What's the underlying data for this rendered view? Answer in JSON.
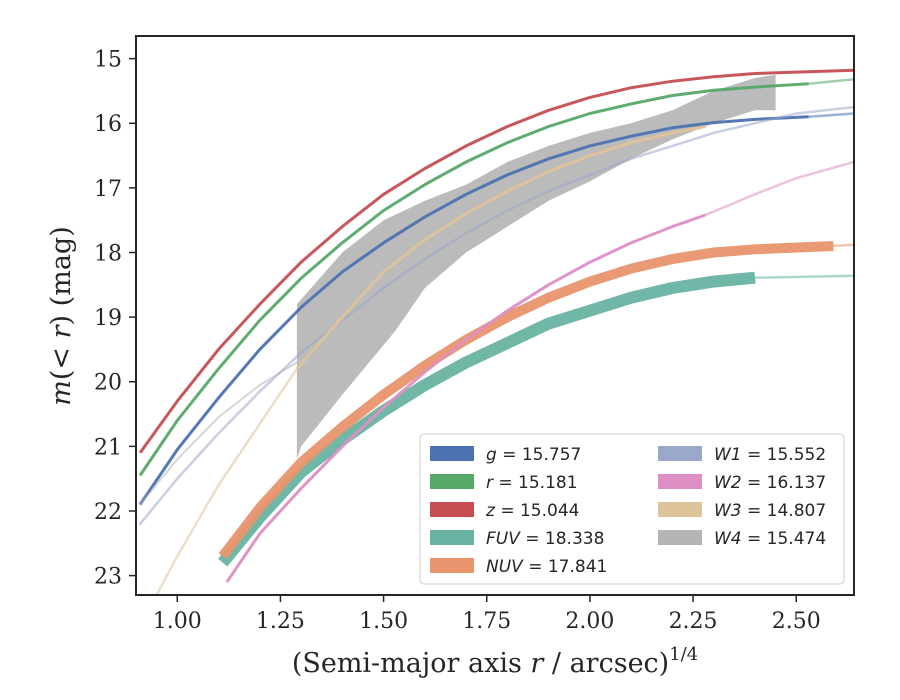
{
  "chart_data": {
    "type": "line",
    "xlabel_prefix": "(Semi-major axis ",
    "xlabel_var": "r",
    "xlabel_suffix": " / arcsec)",
    "xlabel_exp": "1/4",
    "ylabel_prefix": "m(< ",
    "ylabel_var": "r",
    "ylabel_suffix": ") (mag)",
    "xlim": [
      0.9,
      2.64
    ],
    "ylim": [
      23.3,
      14.65
    ],
    "y_inverted": true,
    "xticks": [
      "1.00",
      "1.25",
      "1.50",
      "1.75",
      "2.00",
      "2.25",
      "2.50"
    ],
    "yticks": [
      "15",
      "16",
      "17",
      "18",
      "19",
      "20",
      "21",
      "22",
      "23"
    ],
    "legend_position": "lower-right",
    "series": [
      {
        "name": "g",
        "label": "= 15.757",
        "color": "#4c72b0",
        "points": [
          [
            0.91,
            21.9
          ],
          [
            1.0,
            21.05
          ],
          [
            1.1,
            20.25
          ],
          [
            1.2,
            19.5
          ],
          [
            1.3,
            18.85
          ],
          [
            1.4,
            18.3
          ],
          [
            1.5,
            17.85
          ],
          [
            1.6,
            17.45
          ],
          [
            1.7,
            17.1
          ],
          [
            1.8,
            16.8
          ],
          [
            1.9,
            16.55
          ],
          [
            2.0,
            16.35
          ],
          [
            2.1,
            16.2
          ],
          [
            2.2,
            16.07
          ],
          [
            2.3,
            15.99
          ],
          [
            2.4,
            15.94
          ],
          [
            2.53,
            15.9
          ]
        ],
        "extrap": [
          [
            2.53,
            15.9
          ],
          [
            2.64,
            15.85
          ]
        ]
      },
      {
        "name": "r",
        "label": "= 15.181",
        "color": "#55a868",
        "points": [
          [
            0.91,
            21.45
          ],
          [
            1.0,
            20.6
          ],
          [
            1.1,
            19.8
          ],
          [
            1.2,
            19.05
          ],
          [
            1.3,
            18.4
          ],
          [
            1.4,
            17.85
          ],
          [
            1.5,
            17.35
          ],
          [
            1.6,
            16.95
          ],
          [
            1.7,
            16.6
          ],
          [
            1.8,
            16.3
          ],
          [
            1.9,
            16.05
          ],
          [
            2.0,
            15.85
          ],
          [
            2.1,
            15.7
          ],
          [
            2.2,
            15.57
          ],
          [
            2.3,
            15.49
          ],
          [
            2.4,
            15.44
          ],
          [
            2.53,
            15.39
          ]
        ],
        "extrap": [
          [
            2.53,
            15.39
          ],
          [
            2.64,
            15.32
          ]
        ]
      },
      {
        "name": "z",
        "label": "= 15.044",
        "color": "#c44e52",
        "points": [
          [
            0.91,
            21.1
          ],
          [
            1.0,
            20.3
          ],
          [
            1.1,
            19.5
          ],
          [
            1.2,
            18.8
          ],
          [
            1.3,
            18.15
          ],
          [
            1.4,
            17.6
          ],
          [
            1.5,
            17.1
          ],
          [
            1.6,
            16.7
          ],
          [
            1.7,
            16.35
          ],
          [
            1.8,
            16.05
          ],
          [
            1.9,
            15.8
          ],
          [
            2.0,
            15.6
          ],
          [
            2.1,
            15.45
          ],
          [
            2.2,
            15.35
          ],
          [
            2.3,
            15.28
          ],
          [
            2.4,
            15.23
          ],
          [
            2.64,
            15.18
          ]
        ],
        "extrap": []
      },
      {
        "name": "FUV",
        "label": "= 18.338",
        "color": "#69b3a2",
        "points": [
          [
            1.11,
            22.8
          ],
          [
            1.2,
            22.1
          ],
          [
            1.3,
            21.4
          ],
          [
            1.4,
            20.9
          ],
          [
            1.5,
            20.45
          ],
          [
            1.6,
            20.05
          ],
          [
            1.7,
            19.7
          ],
          [
            1.8,
            19.4
          ],
          [
            1.9,
            19.1
          ],
          [
            2.0,
            18.9
          ],
          [
            2.1,
            18.7
          ],
          [
            2.2,
            18.55
          ],
          [
            2.3,
            18.45
          ],
          [
            2.4,
            18.39
          ]
        ],
        "extrap": [
          [
            2.4,
            18.39
          ],
          [
            2.64,
            18.36
          ]
        ]
      },
      {
        "name": "NUV",
        "label": "= 17.841",
        "color": "#e8956e",
        "points": [
          [
            1.11,
            22.7
          ],
          [
            1.2,
            21.95
          ],
          [
            1.3,
            21.25
          ],
          [
            1.4,
            20.7
          ],
          [
            1.5,
            20.2
          ],
          [
            1.6,
            19.75
          ],
          [
            1.7,
            19.35
          ],
          [
            1.8,
            19.0
          ],
          [
            1.9,
            18.7
          ],
          [
            2.0,
            18.45
          ],
          [
            2.1,
            18.25
          ],
          [
            2.2,
            18.1
          ],
          [
            2.3,
            18.0
          ],
          [
            2.4,
            17.95
          ],
          [
            2.59,
            17.9
          ]
        ],
        "extrap": [
          [
            2.59,
            17.9
          ],
          [
            2.64,
            17.88
          ]
        ]
      },
      {
        "name": "W1",
        "label": "= 15.552",
        "color": "#9aa8cc",
        "points": [],
        "extrap": [
          [
            0.91,
            22.2
          ],
          [
            1.0,
            21.5
          ],
          [
            1.1,
            20.8
          ],
          [
            1.2,
            20.15
          ],
          [
            1.3,
            19.55
          ],
          [
            1.4,
            19.05
          ],
          [
            1.5,
            18.55
          ],
          [
            1.6,
            18.1
          ],
          [
            1.7,
            17.7
          ],
          [
            1.8,
            17.35
          ],
          [
            1.9,
            17.05
          ],
          [
            2.0,
            16.8
          ],
          [
            2.1,
            16.55
          ],
          [
            2.2,
            16.35
          ],
          [
            2.3,
            16.15
          ],
          [
            2.4,
            16.0
          ],
          [
            2.5,
            15.85
          ],
          [
            2.64,
            15.75
          ]
        ]
      },
      {
        "name": "W2",
        "label": "= 16.137",
        "color": "#dd8fc4",
        "points": [
          [
            1.12,
            23.1
          ],
          [
            1.2,
            22.35
          ],
          [
            1.3,
            21.65
          ],
          [
            1.4,
            21.0
          ],
          [
            1.5,
            20.4
          ],
          [
            1.6,
            19.85
          ],
          [
            1.7,
            19.35
          ],
          [
            1.8,
            18.9
          ],
          [
            1.9,
            18.5
          ],
          [
            2.0,
            18.15
          ],
          [
            2.1,
            17.85
          ],
          [
            2.2,
            17.6
          ],
          [
            2.28,
            17.42
          ]
        ],
        "extrap": [
          [
            2.28,
            17.42
          ],
          [
            2.4,
            17.1
          ],
          [
            2.5,
            16.85
          ],
          [
            2.64,
            16.6
          ]
        ]
      },
      {
        "name": "W3",
        "label": "= 14.807",
        "color": "#ddc39a",
        "points": [
          [
            1.29,
            19.8
          ],
          [
            1.4,
            19.0
          ],
          [
            1.5,
            18.3
          ],
          [
            1.6,
            17.8
          ],
          [
            1.7,
            17.4
          ],
          [
            1.8,
            17.05
          ],
          [
            1.9,
            16.75
          ],
          [
            2.0,
            16.5
          ],
          [
            2.1,
            16.3
          ],
          [
            2.2,
            16.15
          ],
          [
            2.28,
            16.05
          ]
        ],
        "extrap": [
          [
            0.95,
            23.3
          ],
          [
            1.0,
            22.7
          ],
          [
            1.1,
            21.6
          ],
          [
            1.2,
            20.65
          ],
          [
            1.29,
            19.8
          ]
        ]
      },
      {
        "name": "W4",
        "label": "= 15.474",
        "color": "#b4b4b4",
        "points": [],
        "extrap": [
          [
            0.91,
            21.9
          ],
          [
            1.0,
            21.2
          ],
          [
            1.1,
            20.55
          ],
          [
            1.2,
            20.05
          ],
          [
            1.29,
            19.7
          ]
        ]
      }
    ]
  }
}
